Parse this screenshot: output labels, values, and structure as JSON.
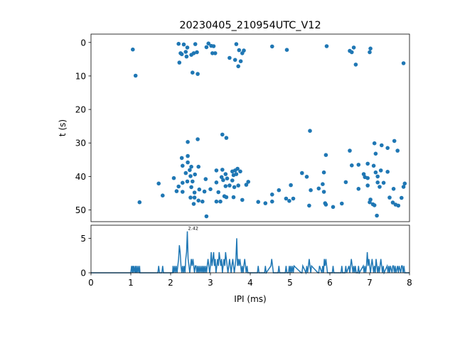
{
  "chart_data": [
    {
      "type": "scatter",
      "title": "20230405_210954UTC_V12",
      "xlabel": "",
      "ylabel": "t (s)",
      "xlim": [
        0,
        8
      ],
      "ylim": [
        53.5,
        -2.5
      ],
      "y_inverted": true,
      "yticks": [
        0,
        10,
        20,
        30,
        40,
        50
      ],
      "color": "#1f77b4",
      "points": [
        [
          1.05,
          2.1
        ],
        [
          1.12,
          9.9
        ],
        [
          1.22,
          47.7
        ],
        [
          2.2,
          0.4
        ],
        [
          2.28,
          3.5
        ],
        [
          2.33,
          0.6
        ],
        [
          2.38,
          2.8
        ],
        [
          2.4,
          4.2
        ],
        [
          2.42,
          1.5
        ],
        [
          2.25,
          3.2
        ],
        [
          2.22,
          6.0
        ],
        [
          2.52,
          3.7
        ],
        [
          2.58,
          3.2
        ],
        [
          2.62,
          0.5
        ],
        [
          2.66,
          2.9
        ],
        [
          2.55,
          9.0
        ],
        [
          2.68,
          9.4
        ],
        [
          2.9,
          1.4
        ],
        [
          2.95,
          0.3
        ],
        [
          3.02,
          1.0
        ],
        [
          3.05,
          3.2
        ],
        [
          3.08,
          1.1
        ],
        [
          3.12,
          3.2
        ],
        [
          3.48,
          4.6
        ],
        [
          3.62,
          5.2
        ],
        [
          3.65,
          0.5
        ],
        [
          3.72,
          2.3
        ],
        [
          3.7,
          7.1
        ],
        [
          3.76,
          5.6
        ],
        [
          3.8,
          3.2
        ],
        [
          3.84,
          2.4
        ],
        [
          4.55,
          1.2
        ],
        [
          4.92,
          2.2
        ],
        [
          5.92,
          1.1
        ],
        [
          6.5,
          2.5
        ],
        [
          6.55,
          2.9
        ],
        [
          6.6,
          1.5
        ],
        [
          6.65,
          6.6
        ],
        [
          7.0,
          2.9
        ],
        [
          7.02,
          1.8
        ],
        [
          7.85,
          6.2
        ],
        [
          5.5,
          26.4
        ],
        [
          6.5,
          32.3
        ],
        [
          5.9,
          33.6
        ],
        [
          6.72,
          36.5
        ],
        [
          6.88,
          40.2
        ],
        [
          3.3,
          27.5
        ],
        [
          3.4,
          28.5
        ],
        [
          2.68,
          28.9
        ],
        [
          2.43,
          29.7
        ],
        [
          7.62,
          29.4
        ],
        [
          7.45,
          31.5
        ],
        [
          7.12,
          30.1
        ],
        [
          7.3,
          30.7
        ],
        [
          7.7,
          32.3
        ],
        [
          7.15,
          33.2
        ],
        [
          6.95,
          36.2
        ],
        [
          7.1,
          36.8
        ],
        [
          6.55,
          36.7
        ],
        [
          2.28,
          34.5
        ],
        [
          2.43,
          33.9
        ],
        [
          2.43,
          35.8
        ],
        [
          2.52,
          37.1
        ],
        [
          2.3,
          36.8
        ],
        [
          2.7,
          37.1
        ],
        [
          2.48,
          38.1
        ],
        [
          2.38,
          39.0
        ],
        [
          2.5,
          39.9
        ],
        [
          2.61,
          39.4
        ],
        [
          3.15,
          38.2
        ],
        [
          3.3,
          38.0
        ],
        [
          3.38,
          39.3
        ],
        [
          3.28,
          40.2
        ],
        [
          3.55,
          38.5
        ],
        [
          3.62,
          38.2
        ],
        [
          3.68,
          37.7
        ],
        [
          3.58,
          39.6
        ],
        [
          3.65,
          39.3
        ],
        [
          3.75,
          38.5
        ],
        [
          3.42,
          40.6
        ],
        [
          2.08,
          40.5
        ],
        [
          2.88,
          40.8
        ],
        [
          3.32,
          41.1
        ],
        [
          3.55,
          41.2
        ],
        [
          3.48,
          42.7
        ],
        [
          3.38,
          42.9
        ],
        [
          3.15,
          41.8
        ],
        [
          3.7,
          42.7
        ],
        [
          3.6,
          43.2
        ],
        [
          3.9,
          42.5
        ],
        [
          3.95,
          41.6
        ],
        [
          2.3,
          41.9
        ],
        [
          2.42,
          41.5
        ],
        [
          2.55,
          41.5
        ],
        [
          2.2,
          43.0
        ],
        [
          2.15,
          44.4
        ],
        [
          2.3,
          44.6
        ],
        [
          2.52,
          43.2
        ],
        [
          2.6,
          44.8
        ],
        [
          2.72,
          43.9
        ],
        [
          2.85,
          44.5
        ],
        [
          3.0,
          43.8
        ],
        [
          2.5,
          46.3
        ],
        [
          2.6,
          46.3
        ],
        [
          2.58,
          48.2
        ],
        [
          2.7,
          47.2
        ],
        [
          2.8,
          47.5
        ],
        [
          2.9,
          51.9
        ],
        [
          3.2,
          44.7
        ],
        [
          3.35,
          45.9
        ],
        [
          3.4,
          46.2
        ],
        [
          3.25,
          47.5
        ],
        [
          3.15,
          47.5
        ],
        [
          3.58,
          46.2
        ],
        [
          3.8,
          47.0
        ],
        [
          1.7,
          42.1
        ],
        [
          1.8,
          45.7
        ],
        [
          4.2,
          47.6
        ],
        [
          4.38,
          48.0
        ],
        [
          4.55,
          45.4
        ],
        [
          4.55,
          47.5
        ],
        [
          4.72,
          44.1
        ],
        [
          4.9,
          46.6
        ],
        [
          4.98,
          47.3
        ],
        [
          5.02,
          42.6
        ],
        [
          5.08,
          46.6
        ],
        [
          5.3,
          39.0
        ],
        [
          5.42,
          40.1
        ],
        [
          5.48,
          48.7
        ],
        [
          5.52,
          44.1
        ],
        [
          5.72,
          43.6
        ],
        [
          5.82,
          42.3
        ],
        [
          5.85,
          38.8
        ],
        [
          5.85,
          44.6
        ],
        [
          5.88,
          48.0
        ],
        [
          5.9,
          48.4
        ],
        [
          6.08,
          49.1
        ],
        [
          6.3,
          48.1
        ],
        [
          6.72,
          43.7
        ],
        [
          6.85,
          39.3
        ],
        [
          6.95,
          40.5
        ],
        [
          6.95,
          42.7
        ],
        [
          7.0,
          47.7
        ],
        [
          7.02,
          46.9
        ],
        [
          7.08,
          48.3
        ],
        [
          7.12,
          48.6
        ],
        [
          7.18,
          51.7
        ],
        [
          7.15,
          38.8
        ],
        [
          7.2,
          41.8
        ],
        [
          7.25,
          43.1
        ],
        [
          7.28,
          38.2
        ],
        [
          7.35,
          41.9
        ],
        [
          7.45,
          38.6
        ],
        [
          7.5,
          46.3
        ],
        [
          7.58,
          47.8
        ],
        [
          7.6,
          43.7
        ],
        [
          7.65,
          48.4
        ],
        [
          7.72,
          48.7
        ],
        [
          7.8,
          46.4
        ],
        [
          7.85,
          43.1
        ],
        [
          7.88,
          42.1
        ],
        [
          7.2,
          40.0
        ],
        [
          6.4,
          41.7
        ]
      ]
    },
    {
      "type": "line",
      "xlabel": "IPI (ms)",
      "ylabel": "",
      "xlim": [
        0,
        8
      ],
      "ylim": [
        0,
        6.9
      ],
      "xticks": [
        0,
        1,
        2,
        3,
        4,
        5,
        6,
        7,
        8
      ],
      "yticks": [
        0,
        5
      ],
      "color": "#1f77b4",
      "annotation": {
        "x": 2.42,
        "y": 6,
        "text": "2.42"
      },
      "x": [
        0,
        1.0,
        1.02,
        1.04,
        1.05,
        1.06,
        1.08,
        1.1,
        1.12,
        1.13,
        1.14,
        1.16,
        1.18,
        1.2,
        1.22,
        1.23,
        1.24,
        1.68,
        1.7,
        1.72,
        1.78,
        1.8,
        1.82,
        2.05,
        2.06,
        2.08,
        2.1,
        2.12,
        2.14,
        2.16,
        2.18,
        2.2,
        2.22,
        2.24,
        2.26,
        2.28,
        2.3,
        2.32,
        2.34,
        2.36,
        2.38,
        2.4,
        2.42,
        2.44,
        2.46,
        2.48,
        2.5,
        2.52,
        2.54,
        2.56,
        2.58,
        2.6,
        2.62,
        2.64,
        2.66,
        2.68,
        2.7,
        2.72,
        2.74,
        2.76,
        2.78,
        2.8,
        2.82,
        2.84,
        2.86,
        2.88,
        2.9,
        2.92,
        2.94,
        2.96,
        2.98,
        3.0,
        3.02,
        3.04,
        3.06,
        3.08,
        3.1,
        3.12,
        3.14,
        3.16,
        3.18,
        3.2,
        3.22,
        3.24,
        3.26,
        3.28,
        3.3,
        3.32,
        3.34,
        3.36,
        3.38,
        3.4,
        3.42,
        3.44,
        3.46,
        3.48,
        3.5,
        3.52,
        3.54,
        3.56,
        3.58,
        3.6,
        3.62,
        3.64,
        3.66,
        3.68,
        3.7,
        3.72,
        3.74,
        3.76,
        3.78,
        3.8,
        3.82,
        3.84,
        3.86,
        3.88,
        3.9,
        3.92,
        3.94,
        3.96,
        4.18,
        4.2,
        4.22,
        4.36,
        4.38,
        4.4,
        4.52,
        4.54,
        4.56,
        4.58,
        4.7,
        4.72,
        4.74,
        4.88,
        4.9,
        4.92,
        4.96,
        4.98,
        5.0,
        5.02,
        5.04,
        5.06,
        5.08,
        5.1,
        5.28,
        5.3,
        5.32,
        5.4,
        5.42,
        5.44,
        5.46,
        5.48,
        5.5,
        5.52,
        5.54,
        5.7,
        5.72,
        5.74,
        5.8,
        5.82,
        5.84,
        5.86,
        5.88,
        5.9,
        5.92,
        5.94,
        6.06,
        6.08,
        6.1,
        6.28,
        6.3,
        6.32,
        6.38,
        6.4,
        6.42,
        6.48,
        6.5,
        6.52,
        6.54,
        6.56,
        6.58,
        6.6,
        6.62,
        6.64,
        6.66,
        6.7,
        6.72,
        6.74,
        6.84,
        6.86,
        6.88,
        6.9,
        6.92,
        6.94,
        6.96,
        6.98,
        7.0,
        7.02,
        7.04,
        7.06,
        7.08,
        7.1,
        7.12,
        7.14,
        7.16,
        7.18,
        7.2,
        7.22,
        7.24,
        7.26,
        7.28,
        7.3,
        7.32,
        7.34,
        7.36,
        7.44,
        7.46,
        7.48,
        7.5,
        7.52,
        7.56,
        7.58,
        7.6,
        7.62,
        7.64,
        7.66,
        7.7,
        7.72,
        7.74,
        7.78,
        7.8,
        7.82,
        7.84,
        7.86,
        7.88,
        7.9,
        8.0
      ],
      "y": [
        0,
        0,
        1,
        0,
        1,
        0,
        1,
        0,
        1,
        0,
        1,
        0,
        1,
        0,
        1,
        0,
        0,
        0,
        1,
        0,
        0,
        1,
        0,
        0,
        1,
        0,
        1,
        0,
        1,
        0,
        1,
        2,
        4,
        3,
        1,
        0,
        1,
        0,
        1,
        0,
        2,
        3,
        6,
        2,
        1,
        0,
        1,
        2,
        1,
        2,
        1,
        0,
        1,
        1,
        0,
        1,
        0,
        1,
        0,
        1,
        0,
        1,
        0,
        1,
        0,
        1,
        0,
        1,
        2,
        1,
        0,
        1,
        3,
        1,
        2,
        3,
        1,
        2,
        0,
        1,
        2,
        1,
        3,
        2,
        1,
        2,
        0,
        1,
        2,
        1,
        3,
        2,
        1,
        0,
        1,
        2,
        1,
        0,
        1,
        2,
        1,
        0,
        1,
        2,
        5,
        1,
        2,
        1,
        2,
        1,
        0,
        1,
        0,
        1,
        2,
        1,
        0,
        1,
        0,
        0,
        0,
        1,
        0,
        0,
        1,
        0,
        1,
        2,
        1,
        0,
        0,
        1,
        0,
        0,
        1,
        0,
        0,
        1,
        0,
        1,
        0,
        1,
        0,
        1,
        0,
        0,
        1,
        0,
        1,
        0,
        1,
        2,
        1,
        0,
        1,
        0,
        0,
        1,
        0,
        1,
        0,
        2,
        1,
        2,
        1,
        0,
        0,
        1,
        0,
        0,
        1,
        0,
        0,
        1,
        0,
        1,
        0,
        1,
        2,
        1,
        0,
        1,
        0,
        1,
        0,
        0,
        1,
        0,
        1,
        0,
        1,
        0,
        1,
        3,
        1,
        2,
        1,
        0,
        1,
        2,
        1,
        0,
        1,
        0,
        2,
        1,
        0,
        1,
        0,
        1,
        2,
        1,
        0,
        1,
        0,
        1,
        0,
        1,
        0,
        1,
        0,
        1,
        1,
        0,
        1,
        0,
        1,
        0,
        1,
        0,
        1,
        1,
        0,
        1,
        0,
        0,
        0
      ]
    }
  ]
}
